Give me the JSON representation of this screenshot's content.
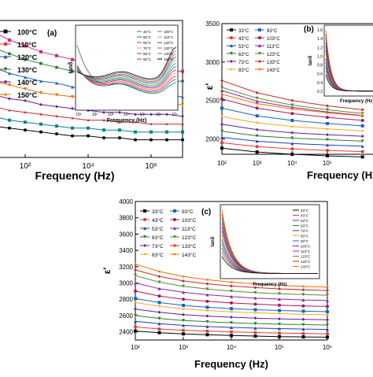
{
  "chart_data": [
    {
      "panel": "(a)",
      "type": "line",
      "xlabel": "Frequency (Hz)",
      "ylabel": "",
      "x_scale": "log",
      "xlim": [
        10,
        10000000
      ],
      "x_tick_labels": [
        "10²",
        "10⁴",
        "10⁶"
      ],
      "legend": {
        "placement": "top-left",
        "entries": [
          "100°C",
          "110°C",
          "120°C",
          "130°C",
          "140°C",
          "150°C"
        ]
      },
      "x": [
        10,
        31.6,
        100,
        316,
        1000,
        3160,
        10000,
        31600,
        100000,
        316000,
        1000000,
        3160000,
        10000000
      ],
      "series": [
        {
          "name": "",
          "color": "#d4237a",
          "values": [
            9.4,
            9.0,
            8.7,
            8.4,
            8.2,
            8.0,
            7.8,
            7.7,
            7.6,
            7.5,
            7.4,
            7.4,
            7.4
          ]
        },
        {
          "name": "",
          "color": "#2e7d32",
          "values": [
            8.6,
            8.3,
            8.0,
            7.8,
            7.6,
            7.4,
            7.3,
            7.2,
            7.1,
            7.0,
            6.9,
            6.9,
            6.9
          ]
        },
        {
          "name": "",
          "color": "#1565c0",
          "values": [
            7.6,
            7.3,
            7.1,
            6.9,
            6.8,
            6.6,
            6.5,
            6.4,
            6.3,
            6.3,
            6.2,
            6.2,
            6.1
          ]
        },
        {
          "name": "",
          "color": "#ef6c00",
          "values": [
            6.9,
            6.7,
            6.5,
            6.3,
            6.2,
            6.1,
            6.0,
            5.9,
            5.8,
            5.8,
            5.7,
            5.7,
            5.7
          ]
        },
        {
          "name": "",
          "color": "#6a1b9a",
          "values": [
            6.2,
            6.0,
            5.9,
            5.7,
            5.6,
            5.5,
            5.4,
            5.3,
            5.3,
            5.2,
            5.2,
            5.2,
            5.1
          ]
        },
        {
          "name": "",
          "color": "#c62828",
          "values": [
            5.6,
            5.4,
            5.3,
            5.2,
            5.1,
            5.0,
            4.9,
            4.9,
            4.8,
            4.8,
            4.7,
            4.7,
            4.7
          ]
        },
        {
          "name": "",
          "color": "#00838f",
          "values": [
            5.1,
            4.9,
            4.8,
            4.7,
            4.6,
            4.5,
            4.5,
            4.4,
            4.4,
            4.3,
            4.3,
            4.3,
            4.3
          ]
        },
        {
          "name": "",
          "color": "#000000",
          "values": [
            4.6,
            4.5,
            4.4,
            4.3,
            4.2,
            4.1,
            4.1,
            4.0,
            4.0,
            3.9,
            3.9,
            3.9,
            3.9
          ]
        }
      ],
      "ylim": [
        3,
        10
      ],
      "inset": {
        "label": "(a)",
        "xlabel": "Frequency (Hz)",
        "ylabel": "tanδ",
        "legend_entries": [
          "40°C",
          "50°C",
          "60°C",
          "70°C",
          "80°C",
          "90°C",
          "100°C",
          "110°C",
          "120°C",
          "130°C",
          "140°C",
          "150°C"
        ],
        "x_tick_labels": [
          "10¹",
          "10²",
          "10³",
          "10⁴",
          "10⁵",
          "10⁶",
          "10⁷"
        ],
        "series_colors": [
          "#2e7d32",
          "#1565c0",
          "#e91e63",
          "#ff9800",
          "#9c27b0",
          "#795548",
          "#00acc1",
          "#8bc34a",
          "#3f51b5",
          "#f44336",
          "#607d8b",
          "#000000"
        ]
      }
    },
    {
      "panel": "(b)",
      "type": "line",
      "xlabel": "Frequency (Hz)",
      "ylabel": "ε'",
      "x_scale": "log",
      "xlim": [
        100,
        3000000
      ],
      "ylim": [
        1800,
        3500
      ],
      "y_ticks": [
        2000,
        2500,
        3000,
        3500
      ],
      "x_tick_labels": [
        "10²",
        "10³",
        "10⁴",
        "10⁵"
      ],
      "legend": {
        "placement": "top-left",
        "entries": [
          "33°C",
          "93°C",
          "43°C",
          "103°C",
          "53°C",
          "113°C",
          "63°C",
          "123°C",
          "73°C",
          "133°C",
          "83°C",
          "143°C"
        ]
      },
      "x": [
        100,
        1000,
        10000,
        100000,
        1000000
      ],
      "series": [
        {
          "name": "33°C",
          "color": "#000000",
          "values": [
            1880,
            1830,
            1800,
            1780,
            1765
          ]
        },
        {
          "name": "43°C",
          "color": "#e53935",
          "values": [
            1950,
            1900,
            1870,
            1850,
            1835
          ]
        },
        {
          "name": "53°C",
          "color": "#1e3fbf",
          "values": [
            2020,
            1970,
            1940,
            1920,
            1905
          ]
        },
        {
          "name": "63°C",
          "color": "#2e7d32",
          "values": [
            2100,
            2040,
            2010,
            1990,
            1970
          ]
        },
        {
          "name": "73°C",
          "color": "#6a1b9a",
          "values": [
            2190,
            2120,
            2080,
            2055,
            2035
          ]
        },
        {
          "name": "83°C",
          "color": "#f9a825",
          "values": [
            2290,
            2210,
            2160,
            2130,
            2105
          ]
        },
        {
          "name": "93°C",
          "color": "#1565c0",
          "values": [
            2400,
            2300,
            2240,
            2200,
            2170
          ]
        },
        {
          "name": "103°C",
          "color": "#ad1457",
          "values": [
            2520,
            2400,
            2330,
            2280,
            2240
          ]
        },
        {
          "name": "113°C",
          "color": "#8e24aa",
          "values": [
            2630,
            2490,
            2410,
            2350,
            2305
          ]
        },
        {
          "name": "123°C",
          "color": "#558b2f",
          "values": [
            2670,
            2530,
            2440,
            2380,
            2330
          ]
        },
        {
          "name": "133°C",
          "color": "#c62828",
          "values": [
            2760,
            2600,
            2500,
            2430,
            2380
          ]
        },
        {
          "name": "143°C",
          "color": "#ef6c00",
          "values": [
            2580,
            2460,
            2390,
            2340,
            2300
          ]
        }
      ],
      "inset": {
        "label": "(b)",
        "xlabel": "Frequency (Hz)",
        "ylabel": "tanδ",
        "y_tick_labels": [
          "0.2",
          "0.4",
          "0.6",
          "0.8",
          "1.0",
          "1.2",
          "1.4",
          "1.6"
        ]
      }
    },
    {
      "panel": "(c)",
      "type": "line",
      "xlabel": "Frequency (Hz)",
      "ylabel": "ε'",
      "x_scale": "log",
      "xlim": [
        100,
        1000000
      ],
      "ylim": [
        2300,
        4000
      ],
      "y_ticks": [
        2400,
        2600,
        2800,
        3000,
        3200,
        3400,
        3600,
        3800,
        4000
      ],
      "x_ticks": [
        100,
        1000,
        10000,
        100000,
        1000000
      ],
      "x_tick_labels": [
        "10²",
        "10³",
        "10⁴",
        "10⁵",
        "10⁶"
      ],
      "legend": {
        "placement": "top-left",
        "entries": [
          "33°C",
          "93°C",
          "43°C",
          "103°C",
          "53°C",
          "113°C",
          "63°C",
          "123°C",
          "73°C",
          "133°C",
          "83°C",
          "143°C"
        ]
      },
      "x": [
        100,
        316,
        1000,
        3160,
        10000,
        31600,
        100000,
        316000,
        1000000
      ],
      "series": [
        {
          "name": "33°C",
          "color": "#000000",
          "values": [
            2410,
            2390,
            2375,
            2365,
            2355,
            2348,
            2342,
            2338,
            2335
          ]
        },
        {
          "name": "43°C",
          "color": "#e53935",
          "values": [
            2460,
            2435,
            2420,
            2410,
            2400,
            2392,
            2386,
            2380,
            2376
          ]
        },
        {
          "name": "53°C",
          "color": "#1e3fbf",
          "values": [
            2530,
            2500,
            2480,
            2465,
            2455,
            2446,
            2440,
            2434,
            2430
          ]
        },
        {
          "name": "63°C",
          "color": "#2e7d32",
          "values": [
            2600,
            2565,
            2540,
            2525,
            2512,
            2502,
            2494,
            2488,
            2484
          ]
        },
        {
          "name": "73°C",
          "color": "#6a1b9a",
          "values": [
            2680,
            2640,
            2612,
            2594,
            2580,
            2569,
            2560,
            2553,
            2548
          ]
        },
        {
          "name": "83°C",
          "color": "#f9a825",
          "values": [
            2760,
            2715,
            2682,
            2662,
            2646,
            2634,
            2624,
            2616,
            2610
          ]
        },
        {
          "name": "93°C",
          "color": "#1565c0",
          "values": [
            2810,
            2760,
            2725,
            2702,
            2685,
            2672,
            2662,
            2654,
            2648
          ]
        },
        {
          "name": "103°C",
          "color": "#ad1457",
          "values": [
            2900,
            2840,
            2800,
            2775,
            2755,
            2740,
            2728,
            2718,
            2712
          ]
        },
        {
          "name": "113°C",
          "color": "#8e24aa",
          "values": [
            3000,
            2930,
            2885,
            2855,
            2832,
            2815,
            2802,
            2792,
            2785
          ]
        },
        {
          "name": "123°C",
          "color": "#558b2f",
          "values": [
            3090,
            3010,
            2960,
            2925,
            2900,
            2882,
            2868,
            2858,
            2850
          ]
        },
        {
          "name": "133°C",
          "color": "#c62828",
          "values": [
            3160,
            3080,
            3025,
            2990,
            2963,
            2943,
            2928,
            2916,
            2908
          ]
        },
        {
          "name": "143°C",
          "color": "#ef6c00",
          "values": [
            3230,
            3140,
            3080,
            3040,
            3010,
            2988,
            2972,
            2958,
            2950
          ]
        }
      ],
      "inset": {
        "label": "(c)",
        "xlabel": "Frequency (Hz)",
        "ylabel": "tanδ",
        "legend_entries": [
          "33°C",
          "43°C",
          "53°C",
          "63°C",
          "73°C",
          "83°C",
          "93°C",
          "103°C",
          "113°C",
          "123°C",
          "133°C",
          "143°C"
        ]
      }
    }
  ]
}
